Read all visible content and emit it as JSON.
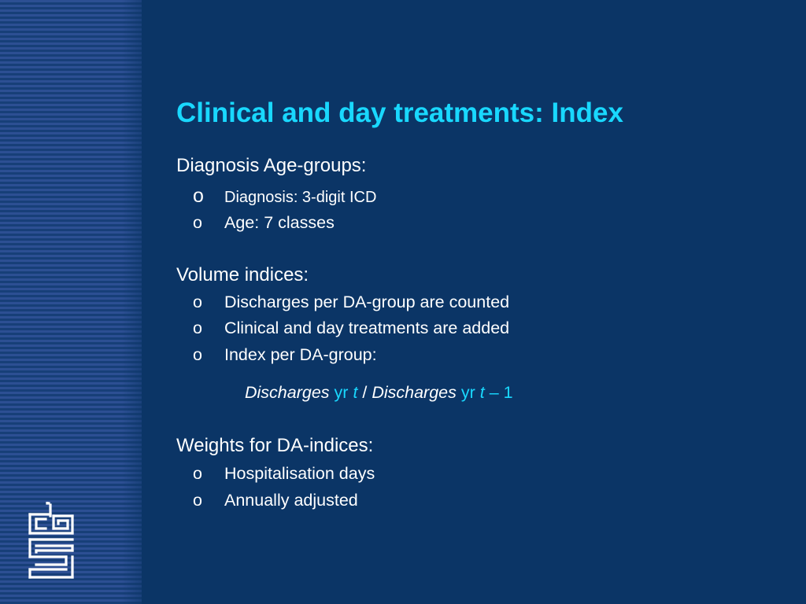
{
  "slide": {
    "title": "Clinical and day treatments: Index",
    "sections": [
      {
        "heading": "Diagnosis Age-groups:",
        "items": [
          "Diagnosis: 3-digit ICD",
          "Age: 7 classes"
        ]
      },
      {
        "heading": "Volume indices:",
        "items": [
          "Discharges per DA-group are counted",
          "Clinical and day treatments are added",
          "Index per DA-group:"
        ]
      },
      {
        "heading": "Weights for DA-indices:",
        "items": [
          "Hospitalisation days",
          "Annually adjusted"
        ]
      }
    ],
    "bullet_marker": "o",
    "formula": {
      "numerator_word": "Discharges",
      "numerator_yr": "yr",
      "numerator_t": "t",
      "divider": " / ",
      "denominator_word": "Discharges",
      "denominator_yr": "yr",
      "denominator_t": "t",
      "denominator_suffix": " – 1"
    }
  },
  "branding": {
    "logo_icon": "cbs-logo-icon"
  },
  "colors": {
    "background": "#0b3566",
    "title": "#19d8ff",
    "text": "#ffffff",
    "stripe_light": "#2c4f93",
    "stripe_dark": "#173f78"
  }
}
